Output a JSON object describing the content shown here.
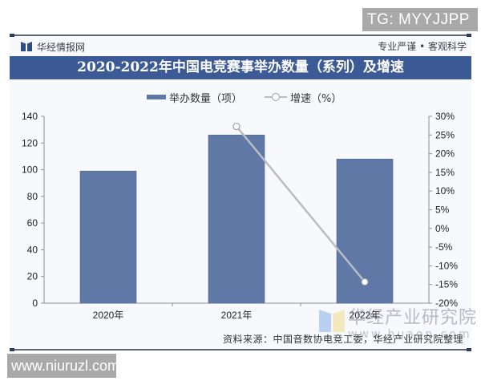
{
  "overlays": {
    "top_badge": "TG: MYYJJPP",
    "bottom_badge": "www.niuruzl.com"
  },
  "header": {
    "brand": "华经情报网",
    "tagline": "专业严谨 • 客观科学",
    "title": "2020-2022年中国电竞赛事举办数量（系列）及增速"
  },
  "legend": {
    "bar_label": "举办数量（项）",
    "line_label": "增速（%）"
  },
  "footer": {
    "source": "资料来源：中国音数协电竞工委，华经产业研究院整理",
    "watermark_name": "华经产业研究院",
    "watermark_url": "www.huaon.com"
  },
  "colors": {
    "title_bar": "#3c5a95",
    "bar": "#5f78a6",
    "line": "#b8bcc4"
  },
  "chart_data": {
    "type": "bar",
    "title": "2020-2022年中国电竞赛事举办数量（系列）及增速",
    "categories": [
      "2020年",
      "2021年",
      "2022年"
    ],
    "series": [
      {
        "name": "举办数量（项）",
        "type": "bar",
        "axis": "left",
        "values": [
          99,
          126,
          108
        ]
      },
      {
        "name": "增速（%）",
        "type": "line",
        "axis": "right",
        "values": [
          null,
          27.3,
          -14.3
        ]
      }
    ],
    "xlabel": "",
    "ylabel_left": "",
    "ylabel_right": "",
    "ylim_left": [
      0,
      140
    ],
    "ylim_right": [
      -20,
      30
    ],
    "left_ticks": [
      "0",
      "20",
      "40",
      "60",
      "80",
      "100",
      "120",
      "140"
    ],
    "right_ticks": [
      "-20%",
      "-15%",
      "-10%",
      "-5%",
      "0%",
      "5%",
      "10%",
      "15%",
      "20%",
      "25%",
      "30%"
    ],
    "grid": false,
    "legend_position": "top"
  }
}
